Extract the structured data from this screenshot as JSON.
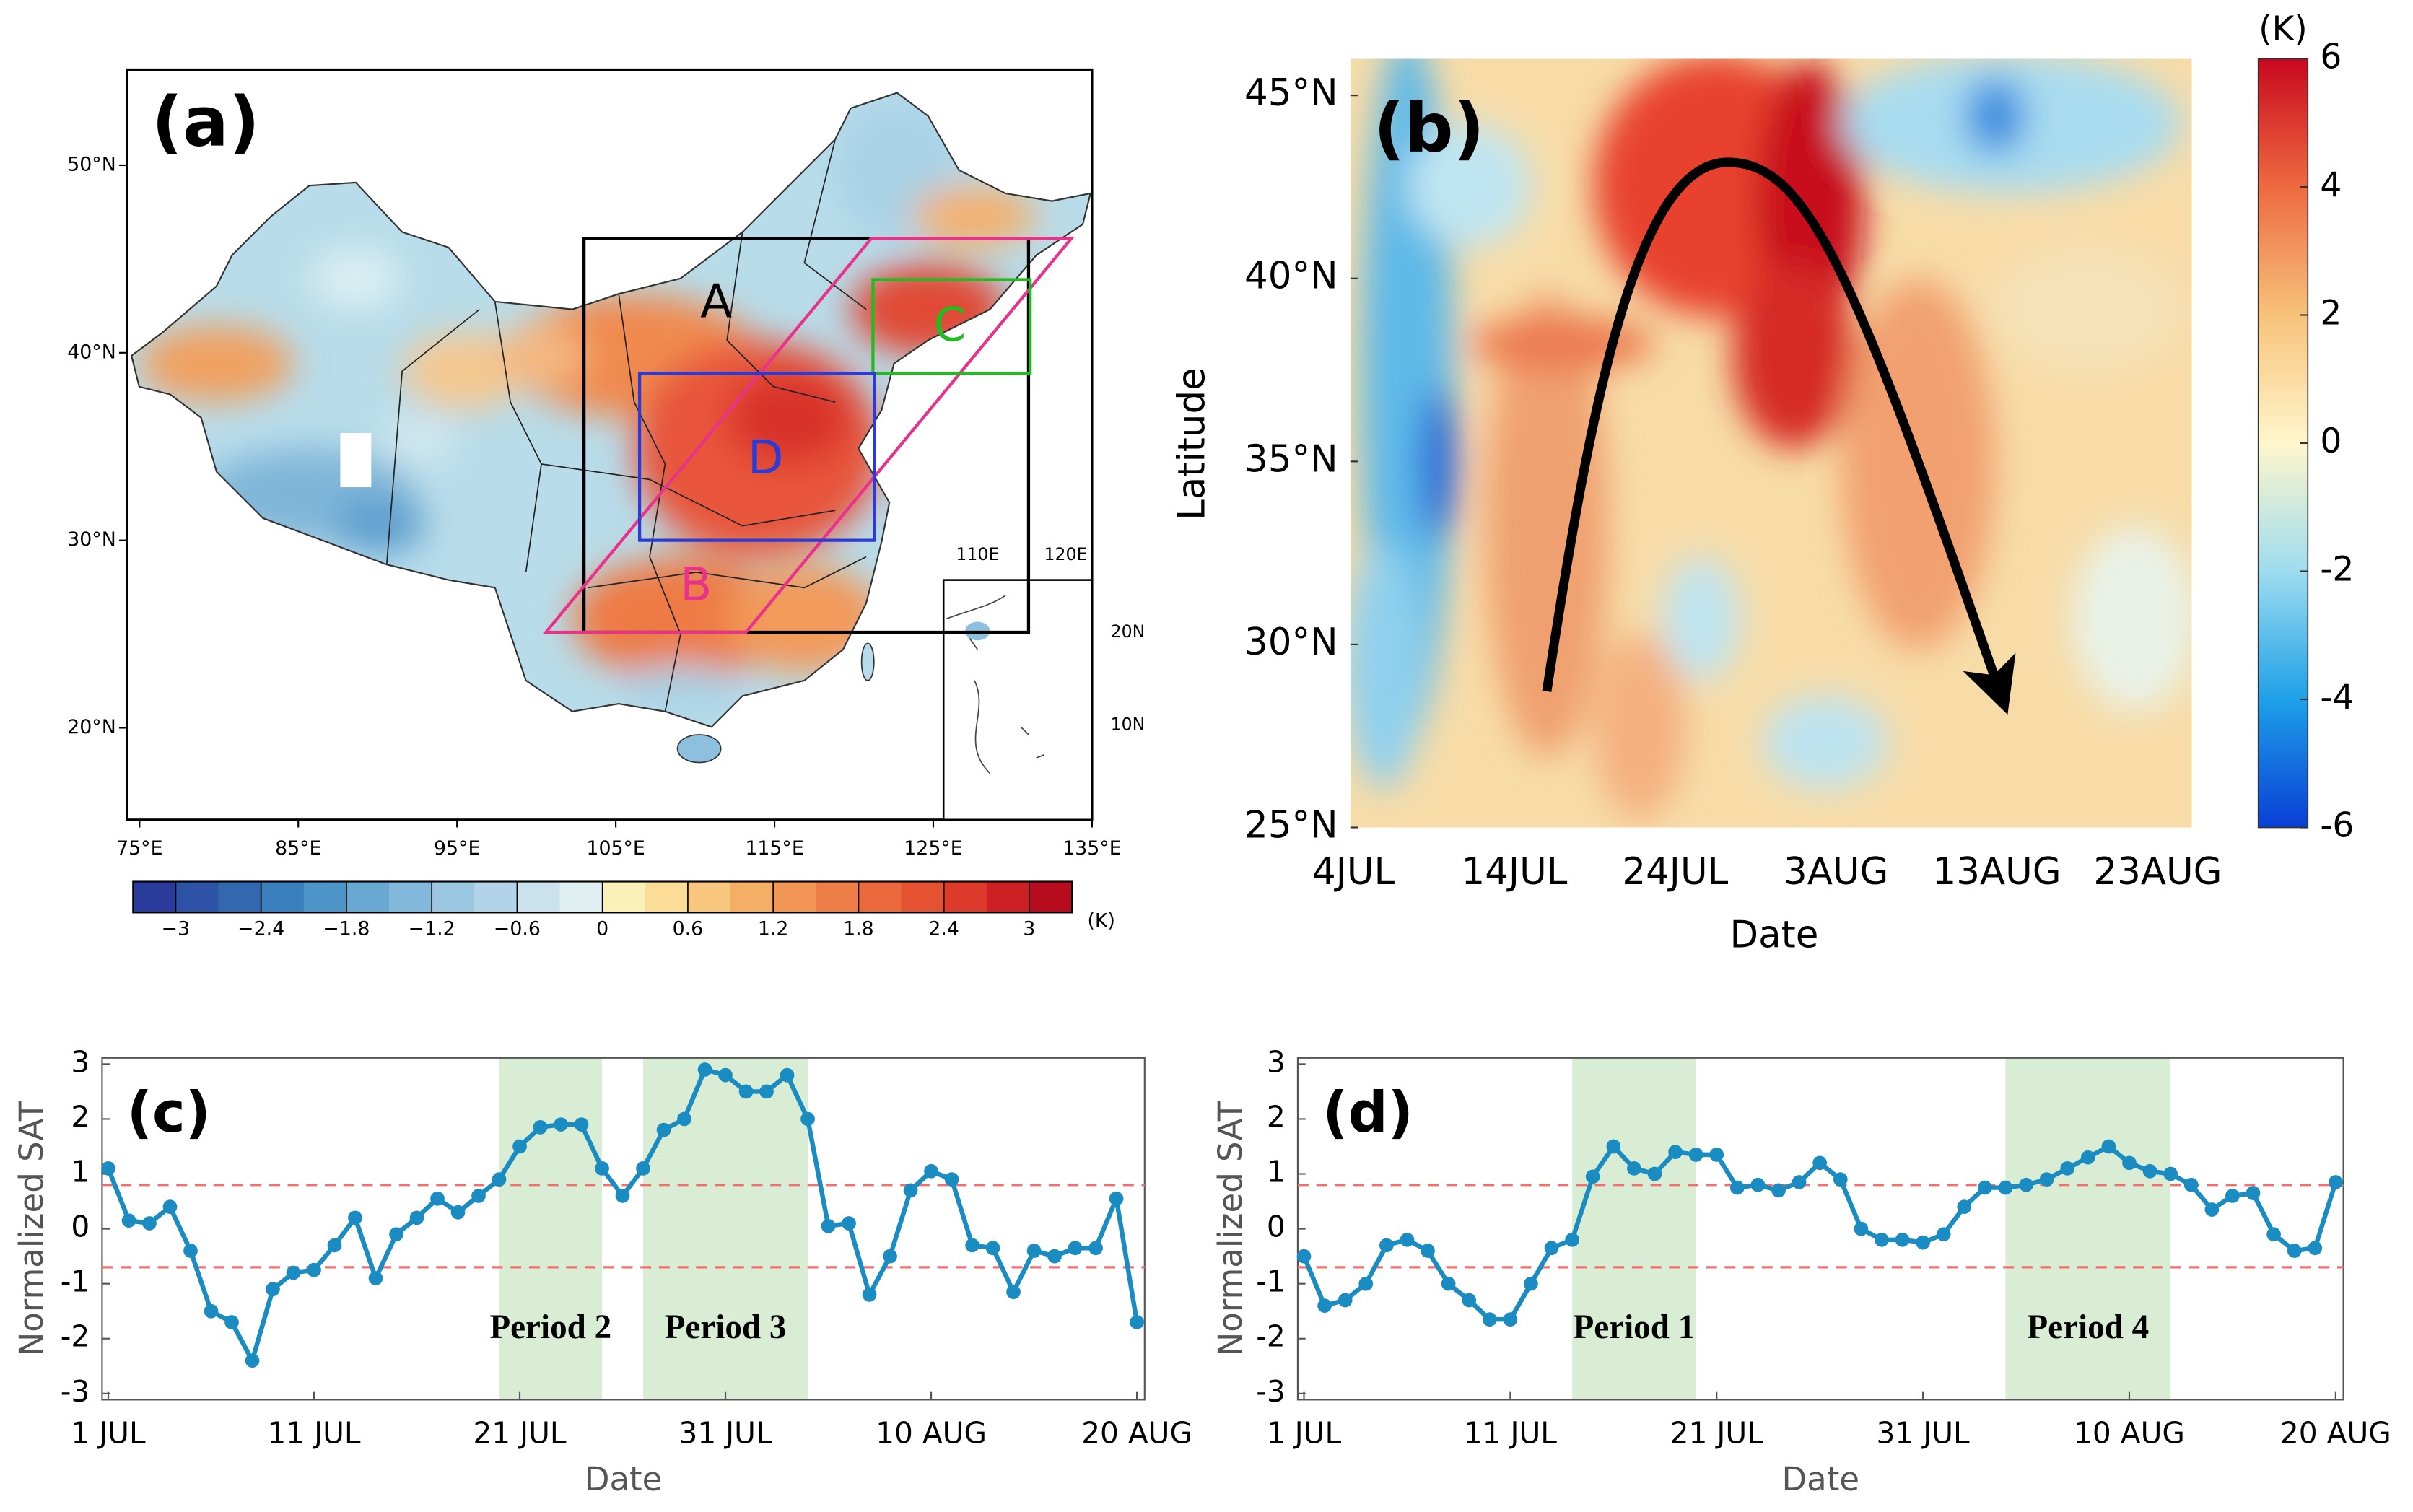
{
  "chart_data": [
    {
      "type": "map",
      "label": "(a)",
      "xlim": [
        74.2,
        135
      ],
      "ylim": [
        15.1,
        55.1
      ],
      "xticks": [
        {
          "value": 75,
          "label": "75°E"
        },
        {
          "value": 85,
          "label": "85°E"
        },
        {
          "value": 95,
          "label": "95°E"
        },
        {
          "value": 105,
          "label": "105°E"
        },
        {
          "value": 115,
          "label": "115°E"
        },
        {
          "value": 125,
          "label": "125°E"
        },
        {
          "value": 135,
          "label": "135°E"
        }
      ],
      "yticks": [
        {
          "value": 20,
          "label": "20°N"
        },
        {
          "value": 30,
          "label": "30°N"
        },
        {
          "value": 40,
          "label": "40°N"
        },
        {
          "value": 50,
          "label": "50°N"
        }
      ],
      "regions": [
        {
          "name": "A",
          "color": "#000000",
          "outline": [
            [
              103,
              25.1
            ],
            [
              131,
              25.1
            ],
            [
              131,
              46.1
            ],
            [
              103,
              46.1
            ]
          ]
        },
        {
          "name": "B",
          "color": "#e8338b",
          "outline": [
            [
              100.6,
              25.1
            ],
            [
              113.2,
              25.1
            ],
            [
              133.7,
              46.1
            ],
            [
              121.1,
              46.1
            ]
          ]
        },
        {
          "name": "C",
          "color": "#22bb22",
          "outline": [
            [
              121.2,
              38.9
            ],
            [
              131.1,
              38.9
            ],
            [
              131.1,
              43.9
            ],
            [
              121.2,
              43.9
            ]
          ]
        },
        {
          "name": "D",
          "color": "#2b3bd6",
          "outline": [
            [
              106.5,
              30
            ],
            [
              121.3,
              30
            ],
            [
              121.3,
              38.9
            ],
            [
              106.5,
              38.9
            ]
          ]
        }
      ],
      "inset_labels": [
        "110E",
        "120E",
        "20N",
        "10N"
      ],
      "colorbar": {
        "lim": [
          -3.3,
          3.3
        ],
        "unit": "(K)",
        "colors": [
          "#2b3b9c",
          "#2d52a6",
          "#3168b0",
          "#3b80be",
          "#4e95c9",
          "#68a8d3",
          "#82b8dc",
          "#9cc7e3",
          "#b3d4e8",
          "#c9e2ed",
          "#e0f0f2",
          "#fbf0b8",
          "#fbdd98",
          "#f8c67c",
          "#f5ae66",
          "#f29656",
          "#ee7e48",
          "#ea683c",
          "#e45232",
          "#dc3a2a",
          "#cc2024",
          "#b60c1e"
        ],
        "ticks": [
          {
            "value": -3,
            "label": "−3"
          },
          {
            "value": -2.4,
            "label": "−2.4"
          },
          {
            "value": -1.8,
            "label": "−1.8"
          },
          {
            "value": -1.2,
            "label": "−1.2"
          },
          {
            "value": -0.6,
            "label": "−0.6"
          },
          0,
          0.6,
          1.2,
          1.8,
          2.4,
          3
        ]
      }
    },
    {
      "type": "heatmap",
      "label": "(b)",
      "xlabel": "Date",
      "ylabel": "Latitude",
      "categories": [
        "4JUL",
        "14JUL",
        "24JUL",
        "3AUG",
        "13AUG",
        "23AUG"
      ],
      "ylim": [
        25,
        46
      ],
      "yticks": [
        {
          "value": 25,
          "label": "25°N"
        },
        {
          "value": 30,
          "label": "30°N"
        },
        {
          "value": 35,
          "label": "35°N"
        },
        {
          "value": 40,
          "label": "40°N"
        },
        {
          "value": 45,
          "label": "45°N"
        }
      ],
      "colorbar": {
        "lim": [
          -6,
          6
        ],
        "unit": "(K)",
        "ticks": [
          -6,
          -4,
          -2,
          0,
          2,
          4,
          6
        ],
        "colors": [
          "#0a3fd6",
          "#1ea0e8",
          "#9edcef",
          "#fff6cc",
          "#f7c27a",
          "#ee6a40",
          "#c8081e"
        ]
      }
    },
    {
      "type": "line",
      "label": "(c)",
      "xlabel": "Date",
      "ylabel": "Normalized SAT",
      "color": "#1b8cc2",
      "categories": [
        "1 JUL",
        null,
        null,
        null,
        null,
        null,
        null,
        null,
        null,
        null,
        "11 JUL",
        null,
        null,
        null,
        null,
        null,
        null,
        null,
        null,
        null,
        "21 JUL",
        null,
        null,
        null,
        null,
        null,
        null,
        null,
        null,
        null,
        "31 JUL",
        null,
        null,
        null,
        null,
        null,
        null,
        null,
        null,
        null,
        "10 AUG",
        null,
        null,
        null,
        null,
        null,
        null,
        null,
        null,
        null,
        "20 AUG"
      ],
      "values": [
        1.1,
        0.15,
        0.1,
        0.4,
        -0.4,
        -1.5,
        -1.7,
        -2.4,
        -1.1,
        -0.8,
        -0.75,
        -0.3,
        0.2,
        -0.9,
        -0.1,
        0.2,
        0.55,
        0.3,
        0.6,
        0.9,
        1.5,
        1.85,
        1.9,
        1.9,
        1.1,
        0.6,
        1.1,
        1.8,
        2.0,
        2.9,
        2.8,
        2.5,
        2.5,
        2.8,
        2.0,
        0.05,
        0.1,
        -1.2,
        -0.5,
        0.7,
        1.05,
        0.9,
        -0.3,
        -0.35,
        -1.15,
        -0.4,
        -0.5,
        -0.35,
        -0.35,
        0.55,
        -1.7
      ],
      "ylim": [
        -3,
        3
      ],
      "yticks": [
        -3,
        -2,
        -1,
        0,
        1,
        2,
        3
      ],
      "thresholds": [
        0.8,
        -0.7
      ],
      "spans": [
        {
          "start": 19,
          "end": 24,
          "label": "Period 2"
        },
        {
          "start": 26,
          "end": 34,
          "label": "Period 3"
        }
      ]
    },
    {
      "type": "line",
      "label": "(d)",
      "xlabel": "Date",
      "ylabel": "Normalized SAT",
      "color": "#1b8cc2",
      "categories": [
        "1 JUL",
        null,
        null,
        null,
        null,
        null,
        null,
        null,
        null,
        null,
        "11 JUL",
        null,
        null,
        null,
        null,
        null,
        null,
        null,
        null,
        null,
        "21 JUL",
        null,
        null,
        null,
        null,
        null,
        null,
        null,
        null,
        null,
        "31 JUL",
        null,
        null,
        null,
        null,
        null,
        null,
        null,
        null,
        null,
        "10 AUG",
        null,
        null,
        null,
        null,
        null,
        null,
        null,
        null,
        null,
        "20 AUG"
      ],
      "values": [
        -0.5,
        -1.4,
        -1.3,
        -1.0,
        -0.3,
        -0.2,
        -0.4,
        -1.0,
        -1.3,
        -1.65,
        -1.65,
        -1.0,
        -0.35,
        -0.2,
        0.95,
        1.5,
        1.1,
        1.0,
        1.4,
        1.35,
        1.35,
        0.75,
        0.8,
        0.7,
        0.85,
        1.2,
        0.9,
        0.0,
        -0.2,
        -0.2,
        -0.25,
        -0.1,
        0.4,
        0.75,
        0.75,
        0.8,
        0.9,
        1.1,
        1.3,
        1.5,
        1.2,
        1.05,
        1.0,
        0.8,
        0.35,
        0.6,
        0.65,
        -0.1,
        -0.4,
        -0.35,
        0.85
      ],
      "ylim": [
        -3,
        3
      ],
      "yticks": [
        -3,
        -2,
        -1,
        0,
        1,
        2,
        3
      ],
      "thresholds": [
        0.8,
        -0.7
      ],
      "spans": [
        {
          "start": 13,
          "end": 19,
          "label": "Period 1"
        },
        {
          "start": 34,
          "end": 42,
          "label": "Period 4"
        }
      ]
    }
  ]
}
